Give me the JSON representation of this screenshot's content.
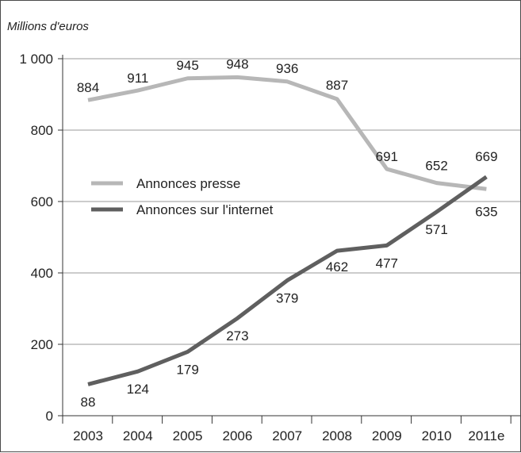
{
  "chart_data": {
    "type": "line",
    "unit_label": "Millions d'euros",
    "categories": [
      "2003",
      "2004",
      "2005",
      "2006",
      "2007",
      "2008",
      "2009",
      "2010",
      "2011e"
    ],
    "ylim": [
      0,
      1000
    ],
    "yticks": [
      0,
      200,
      400,
      600,
      800,
      1000
    ],
    "ytick_labels": [
      "0",
      "200",
      "400",
      "600",
      "800",
      "1 000"
    ],
    "grid": true,
    "legend_placement": "center-left",
    "series": [
      {
        "name": "Annonces presse",
        "color": "#b7b7b7",
        "values": [
          884,
          911,
          945,
          948,
          936,
          887,
          691,
          652,
          635
        ]
      },
      {
        "name": "Annonces sur l'internet",
        "color": "#5f5f5f",
        "values": [
          88,
          124,
          179,
          273,
          379,
          462,
          477,
          571,
          669
        ]
      }
    ]
  }
}
